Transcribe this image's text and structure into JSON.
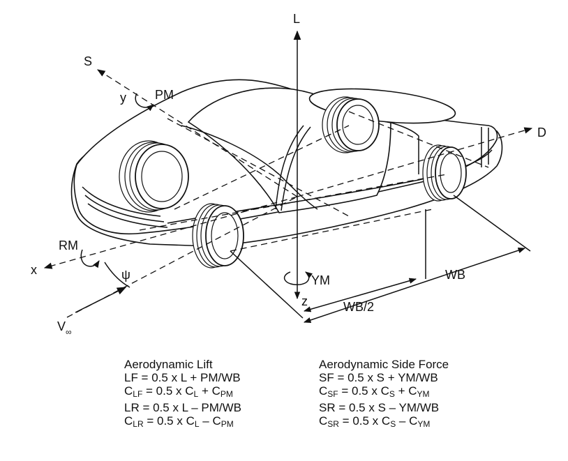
{
  "labels": {
    "lift": "L",
    "side": "S",
    "drag": "D",
    "x_axis": "x",
    "y_axis": "y",
    "z_axis": "z",
    "pitch": "PM",
    "roll": "RM",
    "yaw": "YM",
    "yaw_angle": "ψ",
    "freestream": "V",
    "freestream_sub": "∞",
    "wheelbase": "WB",
    "half_wheelbase": "WB/2"
  },
  "equations": {
    "lift_title": "Aerodynamic Lift",
    "side_title": "Aerodynamic Side Force",
    "lift_lines": [
      [
        {
          "t": "LF = 0.5 x L + PM/WB"
        }
      ],
      [
        {
          "t": "C"
        },
        {
          "s": "LF"
        },
        {
          "t": " = 0.5 x C"
        },
        {
          "s": "L"
        },
        {
          "t": " + C"
        },
        {
          "s": "PM"
        }
      ],
      [
        {
          "t": "LR = 0.5 x L – PM/WB"
        }
      ],
      [
        {
          "t": "C"
        },
        {
          "s": "LR"
        },
        {
          "t": " = 0.5 x C"
        },
        {
          "s": "L"
        },
        {
          "t": " – C"
        },
        {
          "s": "PM"
        }
      ]
    ],
    "side_lines": [
      [
        {
          "t": "SF = 0.5 x S + YM/WB"
        }
      ],
      [
        {
          "t": "C"
        },
        {
          "s": "SF"
        },
        {
          "t": " = 0.5 x C"
        },
        {
          "s": "S"
        },
        {
          "t": " + C"
        },
        {
          "s": "YM"
        }
      ],
      [
        {
          "t": "SR = 0.5 x S – YM/WB"
        }
      ],
      [
        {
          "t": "C"
        },
        {
          "s": "SR"
        },
        {
          "t": " = 0.5 x C"
        },
        {
          "s": "S"
        },
        {
          "t": " – C"
        },
        {
          "s": "YM"
        }
      ]
    ]
  }
}
